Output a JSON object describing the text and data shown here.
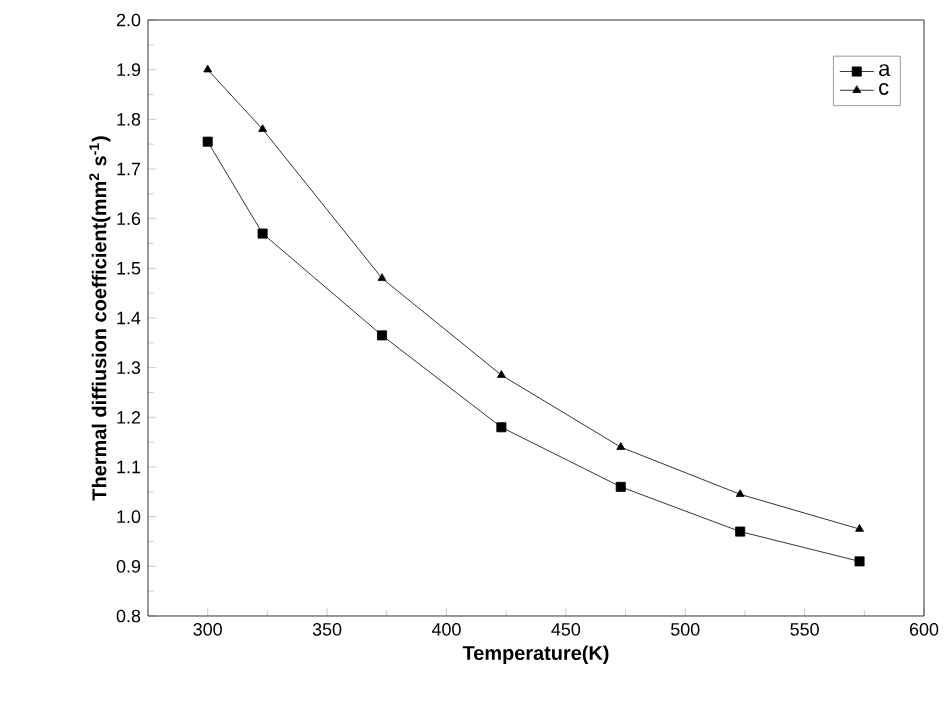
{
  "chart_data": {
    "type": "line",
    "xlabel": "Temperature(K)",
    "ylabel": "Thermal diffiusion coefficient(mm$^{2}$ s$^{-1}$)",
    "x": [
      300,
      323,
      373,
      423,
      473,
      523,
      573
    ],
    "series": [
      {
        "name": "a",
        "color": "#000000",
        "marker": "square",
        "values": [
          1.755,
          1.57,
          1.365,
          1.18,
          1.06,
          0.97,
          0.91
        ]
      },
      {
        "name": "c",
        "color": "#000000",
        "marker": "triangle",
        "values": [
          1.9,
          1.78,
          1.48,
          1.285,
          1.14,
          1.045,
          0.975
        ]
      }
    ],
    "xlim": [
      275,
      600
    ],
    "xticks": [
      300,
      350,
      400,
      450,
      500,
      550,
      600
    ],
    "ylim": [
      0.8,
      2.0
    ],
    "yticks": [
      0.8,
      0.9,
      {
        "value": 1.0,
        "label": "1.0"
      },
      1.1,
      1.2,
      1.3,
      1.4,
      1.5,
      1.6,
      1.7,
      1.8,
      1.9,
      {
        "value": 2.0,
        "label": "2.0"
      }
    ],
    "legend": "top right",
    "grid": false,
    "line_style": "solid"
  }
}
